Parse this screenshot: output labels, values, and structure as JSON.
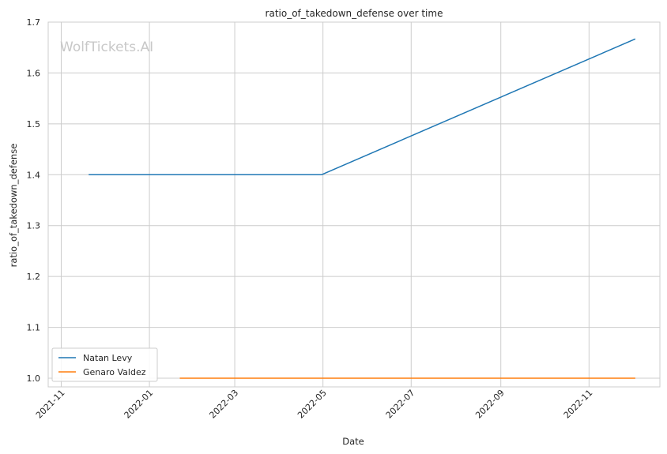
{
  "chart_data": {
    "type": "line",
    "title": "ratio_of_takedown_defense over time",
    "xlabel": "Date",
    "ylabel": "ratio_of_takedown_defense",
    "watermark": "WolfTickets.AI",
    "xlim": [
      "2021-10-23",
      "2022-12-20"
    ],
    "ylim": [
      0.983,
      1.7
    ],
    "x_ticks": [
      "2021-11",
      "2022-01",
      "2022-03",
      "2022-05",
      "2022-07",
      "2022-09",
      "2022-11"
    ],
    "y_ticks": [
      "1.0",
      "1.1",
      "1.2",
      "1.3",
      "1.4",
      "1.5",
      "1.6",
      "1.7"
    ],
    "grid": true,
    "legend_position": "lower-left",
    "series": [
      {
        "name": "Natan Levy",
        "color": "#1f77b4",
        "x": [
          "2021-11-20",
          "2022-04-30",
          "2022-12-03"
        ],
        "y": [
          1.4,
          1.4,
          1.667
        ]
      },
      {
        "name": "Genaro Valdez",
        "color": "#ff7f0e",
        "x": [
          "2022-01-22",
          "2022-12-03"
        ],
        "y": [
          1.0,
          1.0
        ]
      }
    ]
  }
}
